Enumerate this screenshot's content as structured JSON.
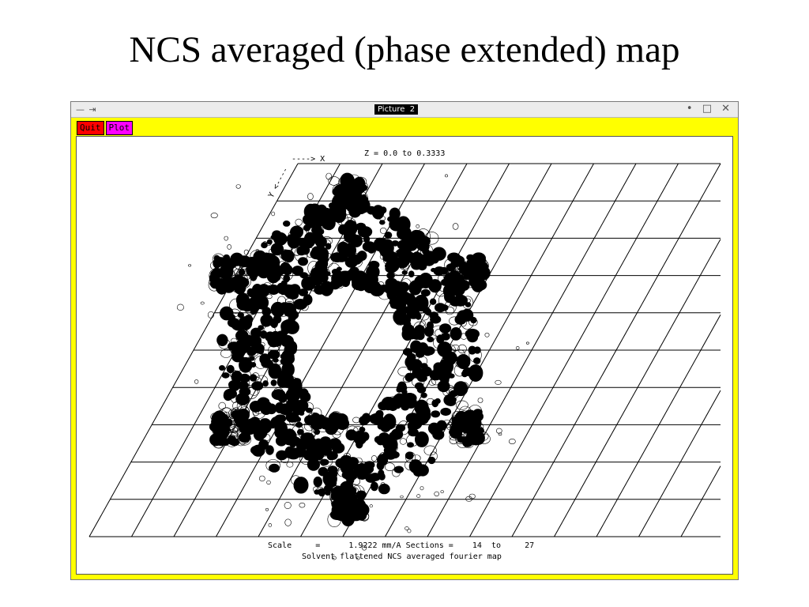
{
  "slide": {
    "title": "NCS averaged (phase extended) map"
  },
  "window": {
    "title": "Picture  2",
    "pin_icons": "— ⇥",
    "controls": "• □ ✕"
  },
  "menu": {
    "quit_label": "Quit",
    "plot_label": "Plot"
  },
  "map": {
    "x_axis_label": "----> X",
    "y_axis_label": "Y <----",
    "z_range": "Z = 0.0 to 0.3333",
    "scale_line": "Scale     =      1.9222 mm/A Sections =    14  to     27",
    "caption": "Solvent flattened NCS averaged fourier map",
    "grid": {
      "rows": 10,
      "cols": 10
    }
  }
}
